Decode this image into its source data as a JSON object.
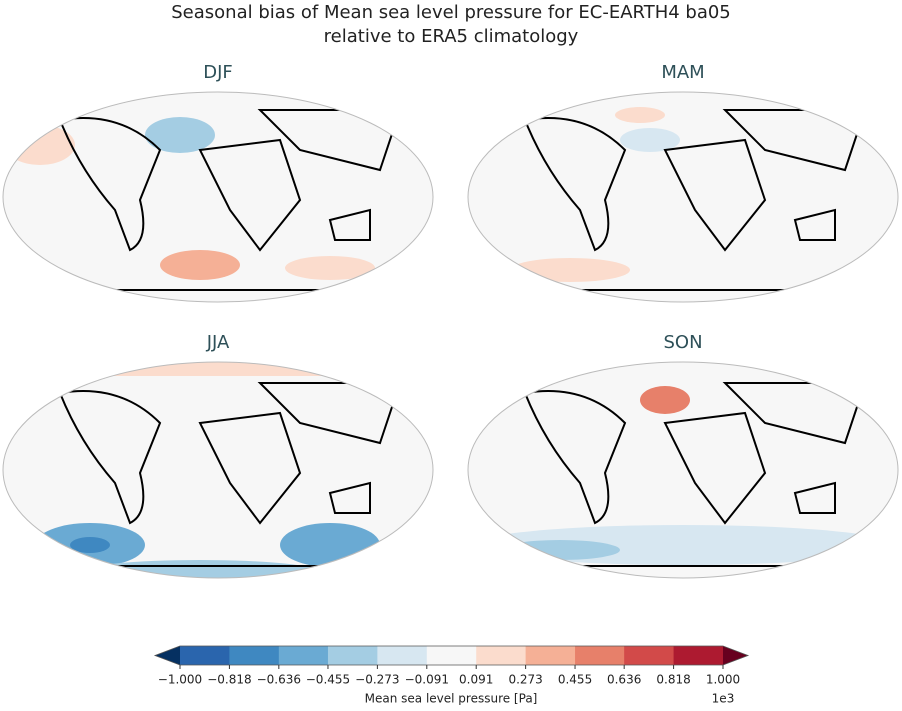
{
  "title": "Seasonal bias of Mean sea level pressure for EC-EARTH4 ba05",
  "subtitle": "relative to ERA5 climatology",
  "panels": [
    {
      "title": "DJF"
    },
    {
      "title": "MAM"
    },
    {
      "title": "JJA"
    },
    {
      "title": "SON"
    }
  ],
  "colorbar": {
    "label": "Mean sea level pressure [Pa]",
    "multiplier": "1e3",
    "ticks": [
      {
        "value": -1,
        "label": "−1.000"
      },
      {
        "value": -0.818,
        "label": "−0.818"
      },
      {
        "value": -0.636,
        "label": "−0.636"
      },
      {
        "value": -0.455,
        "label": "−0.455"
      },
      {
        "value": -0.273,
        "label": "−0.273"
      },
      {
        "value": -0.091,
        "label": "−0.091"
      },
      {
        "value": 0.091,
        "label": "0.091"
      },
      {
        "value": 0.273,
        "label": "0.273"
      },
      {
        "value": 0.455,
        "label": "0.455"
      },
      {
        "value": 0.636,
        "label": "0.636"
      },
      {
        "value": 0.818,
        "label": "0.818"
      },
      {
        "value": 1,
        "label": "1.000"
      }
    ],
    "colors": [
      "#2a65ad",
      "#3f88c1",
      "#6aaad3",
      "#a4cde3",
      "#d7e7f1",
      "#f7f7f7",
      "#fbdccd",
      "#f5b096",
      "#e7806a",
      "#d24a49",
      "#ad1a30"
    ],
    "extend_colors": [
      "#053061",
      "#67001f"
    ]
  }
}
